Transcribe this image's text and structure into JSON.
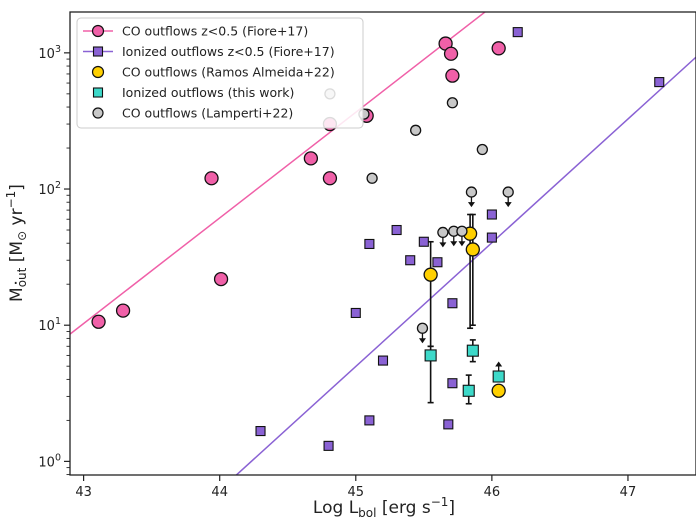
{
  "chart_data": {
    "type": "scatter",
    "title": "",
    "xlabel_main": "Log L",
    "xlabel_sub": "bol",
    "xlabel_unit": "[erg s",
    "xlabel_exp": "−1",
    "xlabel_close": "]",
    "ylabel_main": "M",
    "ylabel_sub": "out",
    "ylabel_unit": "[M",
    "ylabel_sun": "⊙",
    "ylabel_yr": "yr",
    "ylabel_exp": "−1",
    "ylabel_close": "]",
    "xlim": [
      42.9,
      47.5
    ],
    "ylim_log10": [
      -0.1,
      3.3
    ],
    "y_scale": "log",
    "x_ticks": [
      {
        "value": 43,
        "label": "43"
      },
      {
        "value": 44,
        "label": "44"
      },
      {
        "value": 45,
        "label": "45"
      },
      {
        "value": 46,
        "label": "46"
      },
      {
        "value": 47,
        "label": "47"
      }
    ],
    "y_ticks": [
      {
        "value": 1,
        "base": "10",
        "exp": "0"
      },
      {
        "value": 10,
        "base": "10",
        "exp": "1"
      },
      {
        "value": 100,
        "base": "10",
        "exp": "2"
      },
      {
        "value": 1000,
        "base": "10",
        "exp": "3"
      }
    ],
    "legend_position": "top-left",
    "legend": [
      {
        "label": "CO outflows z<0.5 (Fiore+17)",
        "marker": "circle",
        "color": "#f060a8",
        "line": true
      },
      {
        "label": "Ionized outflows z<0.5 (Fiore+17)",
        "marker": "square",
        "color": "#8a62d4",
        "line": true
      },
      {
        "label": "CO outflows (Ramos Almeida+22)",
        "marker": "circle",
        "color": "#ffd000",
        "line": false
      },
      {
        "label": "Ionized outflows (this work)",
        "marker": "square",
        "color": "#3dd9c9",
        "line": false
      },
      {
        "label": "CO outflows (Lamperti+22)",
        "marker": "circle",
        "color": "#c8c8c8",
        "line": false
      }
    ],
    "fits": [
      {
        "series": "CO outflows z<0.5 (Fiore+17)",
        "color": "#f060a8",
        "points": [
          [
            42.9,
            8.6
          ],
          [
            45.97,
            2070
          ]
        ]
      },
      {
        "series": "Ionized outflows z<0.5 (Fiore+17)",
        "color": "#8a62d4",
        "points": [
          [
            44.12,
            0.79
          ],
          [
            47.5,
            930
          ]
        ]
      }
    ],
    "series": [
      {
        "name": "CO outflows z<0.5 (Fiore+17)",
        "marker": "circle",
        "color": "#f060a8",
        "points": [
          {
            "x": 43.11,
            "y": 10.6
          },
          {
            "x": 43.29,
            "y": 12.8
          },
          {
            "x": 43.94,
            "y": 120
          },
          {
            "x": 44.01,
            "y": 21.8
          },
          {
            "x": 44.67,
            "y": 168
          },
          {
            "x": 44.81,
            "y": 120
          },
          {
            "x": 44.81,
            "y": 300
          },
          {
            "x": 45.08,
            "y": 345
          },
          {
            "x": 45.66,
            "y": 1170
          },
          {
            "x": 45.7,
            "y": 985
          },
          {
            "x": 45.71,
            "y": 680
          },
          {
            "x": 46.05,
            "y": 1080
          }
        ]
      },
      {
        "name": "Ionized outflows z<0.5 (Fiore+17)",
        "marker": "square",
        "color": "#8a62d4",
        "points": [
          {
            "x": 44.3,
            "y": 1.67
          },
          {
            "x": 44.8,
            "y": 1.3
          },
          {
            "x": 45.0,
            "y": 12.3
          },
          {
            "x": 45.1,
            "y": 39.5
          },
          {
            "x": 45.1,
            "y": 2.0
          },
          {
            "x": 45.2,
            "y": 5.5
          },
          {
            "x": 45.3,
            "y": 50
          },
          {
            "x": 45.4,
            "y": 30
          },
          {
            "x": 45.5,
            "y": 41
          },
          {
            "x": 45.6,
            "y": 29
          },
          {
            "x": 45.68,
            "y": 1.87
          },
          {
            "x": 45.71,
            "y": 14.5
          },
          {
            "x": 45.71,
            "y": 3.75
          },
          {
            "x": 46.0,
            "y": 65
          },
          {
            "x": 46.0,
            "y": 44
          },
          {
            "x": 46.19,
            "y": 1420
          },
          {
            "x": 47.23,
            "y": 610
          }
        ]
      },
      {
        "name": "CO outflows (Ramos Almeida+22)",
        "marker": "circle",
        "color": "#ffd000",
        "points": [
          {
            "x": 45.55,
            "y": 23.5,
            "err_low": 7.0,
            "err_high": 41
          },
          {
            "x": 45.84,
            "y": 47,
            "err_low": 9.5,
            "err_high": 65
          },
          {
            "x": 45.86,
            "y": 36,
            "err_low": 10,
            "err_high": 65
          },
          {
            "x": 46.05,
            "y": 3.3
          }
        ]
      },
      {
        "name": "Ionized outflows (this work)",
        "marker": "square",
        "color": "#3dd9c9",
        "points": [
          {
            "x": 45.55,
            "y": 6.0,
            "err_low": 2.7,
            "err_high": 7.0
          },
          {
            "x": 45.83,
            "y": 3.3,
            "err_low": 2.65,
            "err_high": 4.3
          },
          {
            "x": 45.86,
            "y": 6.5,
            "err_low": 5.4,
            "err_high": 7.8
          },
          {
            "x": 46.05,
            "y": 4.2,
            "lower_limit": true
          }
        ]
      },
      {
        "name": "CO outflows (Lamperti+22)",
        "marker": "circle",
        "color": "#c8c8c8",
        "points": [
          {
            "x": 44.81,
            "y": 500
          },
          {
            "x": 45.06,
            "y": 355
          },
          {
            "x": 45.12,
            "y": 120
          },
          {
            "x": 45.44,
            "y": 270
          },
          {
            "x": 45.71,
            "y": 430
          },
          {
            "x": 45.93,
            "y": 195
          },
          {
            "x": 45.49,
            "y": 9.5,
            "upper_limit": true
          },
          {
            "x": 45.64,
            "y": 48,
            "upper_limit": true
          },
          {
            "x": 45.72,
            "y": 49,
            "upper_limit": true
          },
          {
            "x": 45.78,
            "y": 49,
            "upper_limit": true
          },
          {
            "x": 45.85,
            "y": 95,
            "upper_limit": true
          },
          {
            "x": 46.12,
            "y": 95,
            "upper_limit": true
          }
        ]
      }
    ]
  }
}
